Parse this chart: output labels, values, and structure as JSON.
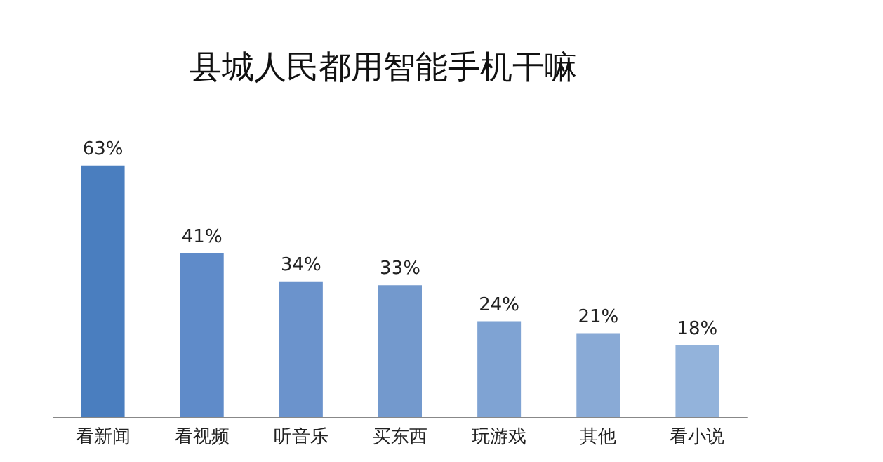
{
  "chart_data": {
    "type": "bar",
    "title": "县城人民都用智能手机干嘛",
    "categories": [
      "看新闻",
      "看视频",
      "听音乐",
      "买东西",
      "玩游戏",
      "其他",
      "看小说"
    ],
    "values": [
      63,
      41,
      34,
      33,
      24,
      21,
      18
    ],
    "colors": [
      "#4a7ebf",
      "#5f8bc9",
      "#6b93cc",
      "#7399cd",
      "#7fa3d3",
      "#89aad6",
      "#93b3db"
    ],
    "value_labels": [
      "63%",
      "41%",
      "34%",
      "33%",
      "24%",
      "21%",
      "18%"
    ]
  }
}
